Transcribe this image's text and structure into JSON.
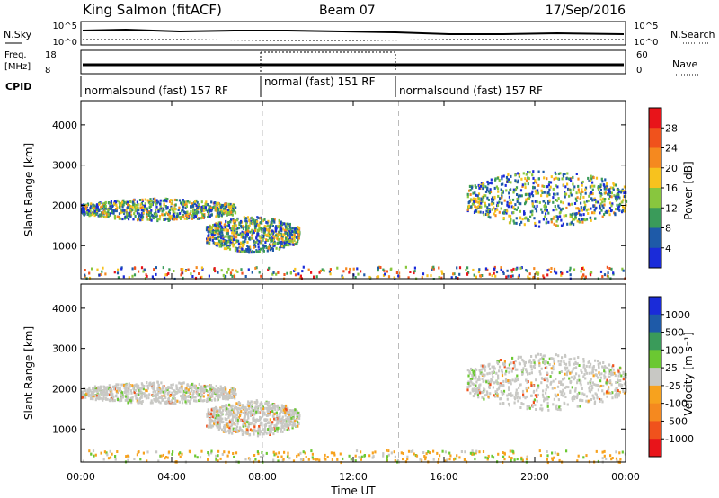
{
  "header": {
    "station": "King Salmon (fitACF)",
    "beam": "Beam 07",
    "date": "17/Sep/2016"
  },
  "summary_panels": {
    "nsky_label": "N.Sky",
    "nsearch_label": "N.Search",
    "left_ticks_top": [
      "10^5",
      "10^0"
    ],
    "right_ticks_top": [
      "10^5",
      "10^0"
    ],
    "freq_label_1": "Freq.",
    "freq_label_2": "[MHz]",
    "freq_ticks": [
      "18",
      "8"
    ],
    "nave_label": "Nave",
    "nave_ticks": [
      "60",
      "0"
    ],
    "cpid_label": "CPID",
    "cpid_segments": [
      {
        "label": "normalsound (fast) 157 RF",
        "start_hour": 0,
        "end_hour": 8
      },
      {
        "label": "normal (fast) 151 RF",
        "start_hour": 8,
        "end_hour": 14
      },
      {
        "label": "normalsound (fast) 157 RF",
        "start_hour": 14,
        "end_hour": 24
      }
    ]
  },
  "colorbars": {
    "power": {
      "label": "Power [dB]",
      "ticks": [
        "28",
        "24",
        "20",
        "16",
        "12",
        "8",
        "4"
      ],
      "colors": [
        "#e8141a",
        "#f0521c",
        "#f5891f",
        "#f7c21e",
        "#88c63e",
        "#3a9b5a",
        "#1e5aa8",
        "#1a2bd9"
      ]
    },
    "velocity": {
      "label": "Velocity [m s⁻¹]",
      "ticks": [
        "1000",
        "500",
        "100",
        "25",
        "-25",
        "-100",
        "-500",
        "-1000"
      ],
      "colors": [
        "#1a2bd9",
        "#1e5aa8",
        "#3a9b5a",
        "#6bc832",
        "#c8c8c4",
        "#f7a21e",
        "#f5891f",
        "#f0521c",
        "#e8141a"
      ]
    }
  },
  "chart_data": [
    {
      "type": "heatmap",
      "panel": "power",
      "xlabel": "Time UT",
      "ylabel": "Slant Range [km]",
      "xlim_hours": [
        0,
        24
      ],
      "ylim_km": [
        180,
        4600
      ],
      "x_ticks": [
        "00:00",
        "04:00",
        "08:00",
        "12:00",
        "16:00",
        "20:00",
        "00:00"
      ],
      "y_ticks": [
        1000,
        2000,
        3000,
        4000
      ],
      "echo_regions": [
        {
          "t_start": 0.0,
          "t_end": 6.8,
          "range_start": 1650,
          "range_end": 2200,
          "power_db": 16
        },
        {
          "t_start": 5.5,
          "t_end": 9.6,
          "range_start": 850,
          "range_end": 1750,
          "power_db": 20
        },
        {
          "t_start": 17.0,
          "t_end": 24.0,
          "range_start": 1500,
          "range_end": 2900,
          "power_db": 20
        },
        {
          "t_start": 0.0,
          "t_end": 24.0,
          "range_start": 200,
          "range_end": 500,
          "power_db": 8
        }
      ]
    },
    {
      "type": "heatmap",
      "panel": "velocity",
      "xlabel": "Time UT",
      "ylabel": "Slant Range [km]",
      "xlim_hours": [
        0,
        24
      ],
      "ylim_km": [
        180,
        4600
      ],
      "x_ticks": [
        "00:00",
        "04:00",
        "08:00",
        "12:00",
        "16:00",
        "20:00",
        "00:00"
      ],
      "y_ticks": [
        1000,
        2000,
        3000,
        4000
      ],
      "echo_regions": [
        {
          "t_start": 0.0,
          "t_end": 6.8,
          "range_start": 1650,
          "range_end": 2200,
          "velocity": 0
        },
        {
          "t_start": 5.5,
          "t_end": 9.6,
          "range_start": 850,
          "range_end": 1750,
          "velocity": 0
        },
        {
          "t_start": 17.0,
          "t_end": 24.0,
          "range_start": 1500,
          "range_end": 2900,
          "velocity": 0
        },
        {
          "t_start": 0.0,
          "t_end": 24.0,
          "range_start": 200,
          "range_end": 500,
          "velocity": -100
        }
      ]
    }
  ]
}
